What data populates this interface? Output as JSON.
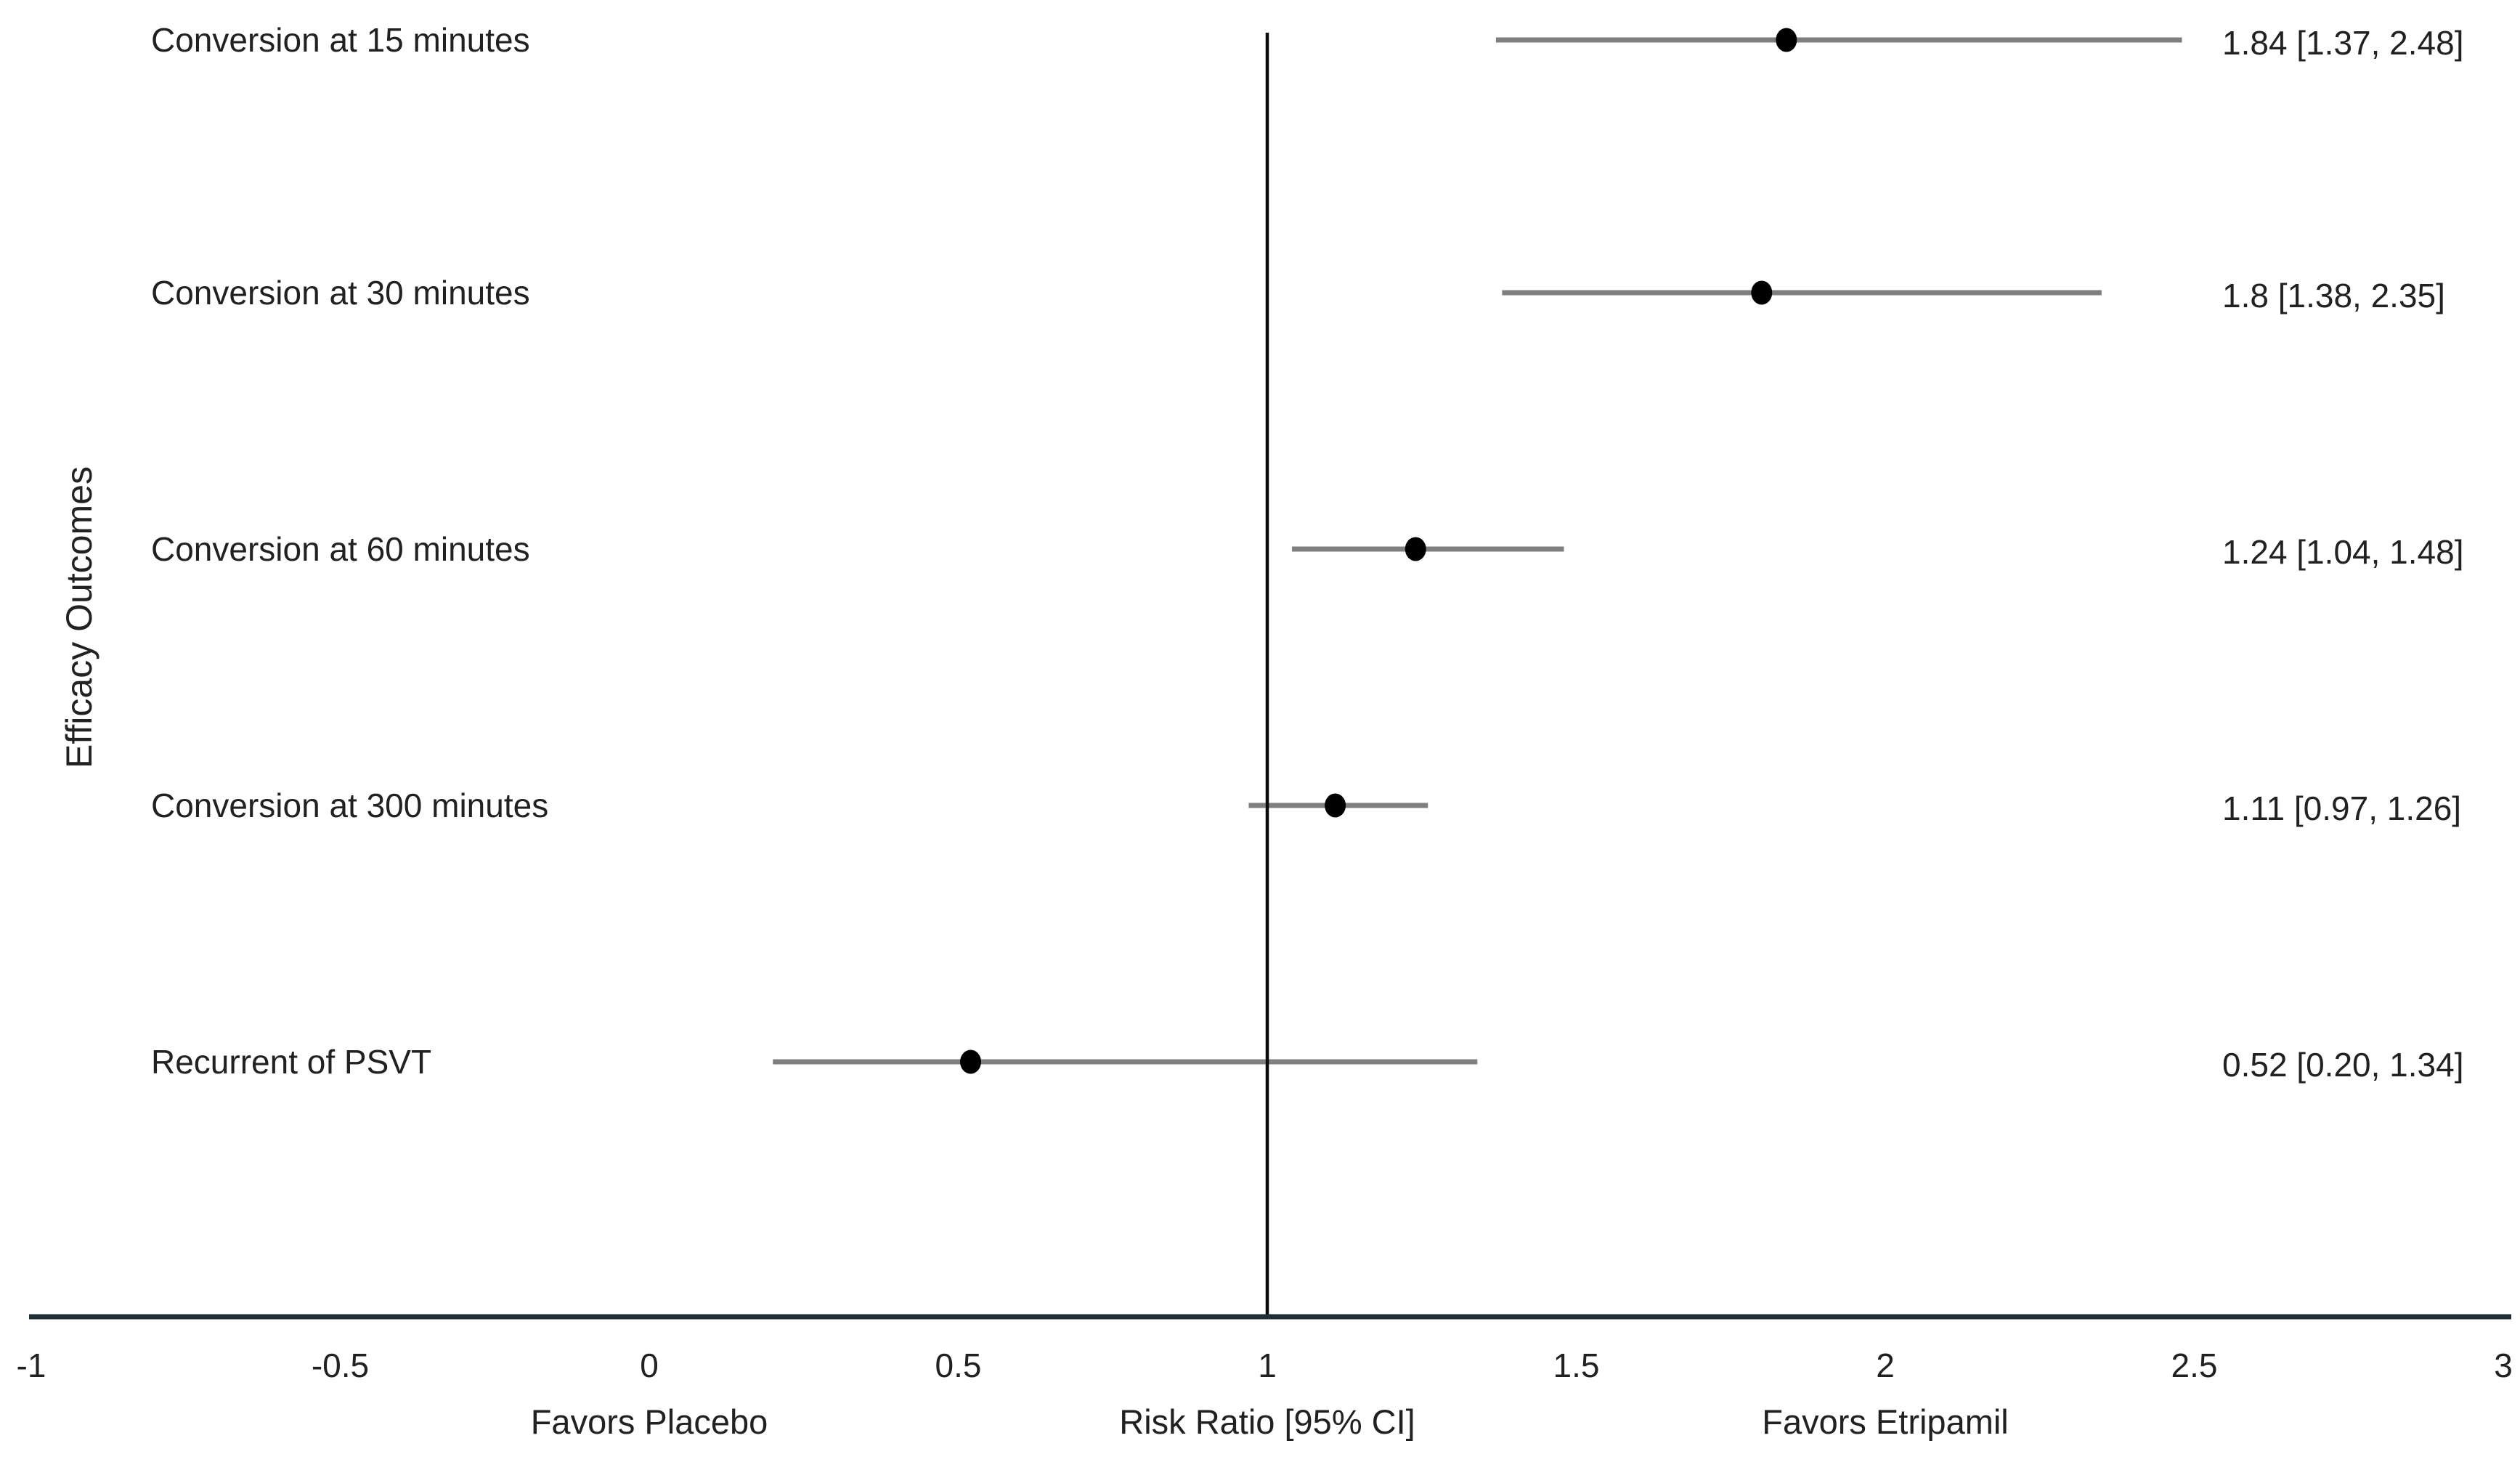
{
  "chart_data": {
    "type": "scatter",
    "subtype": "forest-plot",
    "title": "",
    "ylabel": "Efficacy Outcomes",
    "xaxis_title": "Risk Ratio [95% CI]",
    "xaxis_left_caption": "Favors Placebo",
    "xaxis_right_caption": "Favors Etripamil",
    "xlim": [
      -1,
      3
    ],
    "xticks": [
      -1,
      -0.5,
      0,
      0.5,
      1,
      1.5,
      2,
      2.5,
      3
    ],
    "xtick_labels": [
      "-1",
      "-0.5",
      "0",
      "0.5",
      "1",
      "1.5",
      "2",
      "2.5",
      "3"
    ],
    "reference_line_x": 1,
    "grid": false,
    "legend": "none",
    "rows": [
      {
        "label": "Conversion at 15 minutes",
        "estimate": 1.84,
        "ci_low": 1.37,
        "ci_high": 2.48,
        "estimate_label": "1.84 [1.37, 2.48]"
      },
      {
        "label": "Conversion at 30 minutes",
        "estimate": 1.8,
        "ci_low": 1.38,
        "ci_high": 2.35,
        "estimate_label": "1.8 [1.38, 2.35]"
      },
      {
        "label": "Conversion at 60 minutes",
        "estimate": 1.24,
        "ci_low": 1.04,
        "ci_high": 1.48,
        "estimate_label": "1.24 [1.04, 1.48]"
      },
      {
        "label": "Conversion at 300 minutes",
        "estimate": 1.11,
        "ci_low": 0.97,
        "ci_high": 1.26,
        "estimate_label": "1.11 [0.97, 1.26]"
      },
      {
        "label": "Recurrent of PSVT",
        "estimate": 0.52,
        "ci_low": 0.2,
        "ci_high": 1.34,
        "estimate_label": "0.52 [0.20, 1.34]"
      }
    ],
    "colors": {
      "background": "#ffffff",
      "ci_line": "#7f7f7f",
      "marker": "#000000",
      "axis_line": "#1e2d36",
      "reference_line": "#0a0a0a",
      "text": "#212121"
    }
  }
}
